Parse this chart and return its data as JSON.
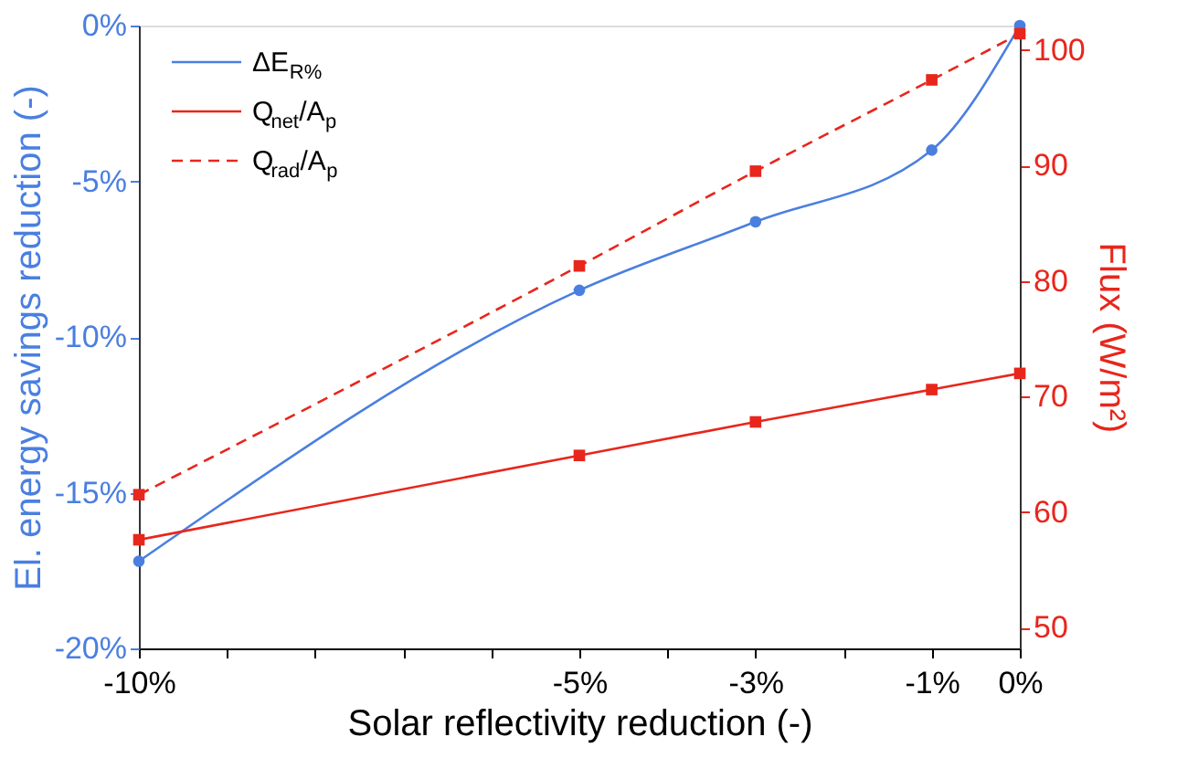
{
  "chart_data": {
    "type": "line",
    "xlabel": "Solar reflectivity reduction (-)",
    "ylabel": "El. energy savings reduction (-)",
    "y2label": "Flux (W/m²)",
    "x": [
      -10,
      -5,
      -3,
      -1,
      0
    ],
    "xlim": [
      -10,
      0
    ],
    "xticks": [
      {
        "value": -10,
        "label": "-10%"
      },
      {
        "value": -9,
        "label": null
      },
      {
        "value": -8,
        "label": null
      },
      {
        "value": -7,
        "label": null
      },
      {
        "value": -6,
        "label": null
      },
      {
        "value": -5,
        "label": "-5%"
      },
      {
        "value": -4,
        "label": null
      },
      {
        "value": -3,
        "label": "-3%"
      },
      {
        "value": -2,
        "label": null
      },
      {
        "value": -1,
        "label": "-1%"
      },
      {
        "value": 0,
        "label": "0%"
      }
    ],
    "ylim": [
      -20,
      0
    ],
    "yticks": [
      {
        "value": -20,
        "label": "-20%"
      },
      {
        "value": -15,
        "label": "-15%"
      },
      {
        "value": -10,
        "label": "-10%"
      },
      {
        "value": -5,
        "label": "-5%"
      },
      {
        "value": 0,
        "label": "0%"
      }
    ],
    "y2lim": [
      48.2,
      102.1
    ],
    "y2ticks": [
      50,
      60,
      70,
      80,
      90,
      100
    ],
    "series": [
      {
        "name": "ΔE$_{R%}$",
        "color": "#4a7fe0",
        "marker": "circle",
        "line_style": "solid",
        "values": [
          -17.2,
          -8.5,
          -6.3,
          -4.0,
          0
        ]
      },
      {
        "name": "Q$_{net}$/A$_{p}$",
        "color": "#e8261c",
        "marker": "square",
        "line_style": "solid",
        "axis": "y2",
        "values": [
          57.6,
          64.9,
          67.8,
          70.6,
          72.0
        ]
      },
      {
        "name": "Q$_{rad}$/A$_{p}$",
        "color": "#e8261c",
        "marker": "square",
        "line_style": "dashed",
        "axis": "y2",
        "values": [
          61.5,
          81.3,
          89.5,
          97.4,
          101.4
        ]
      }
    ],
    "legend": "top left",
    "grid": false
  }
}
